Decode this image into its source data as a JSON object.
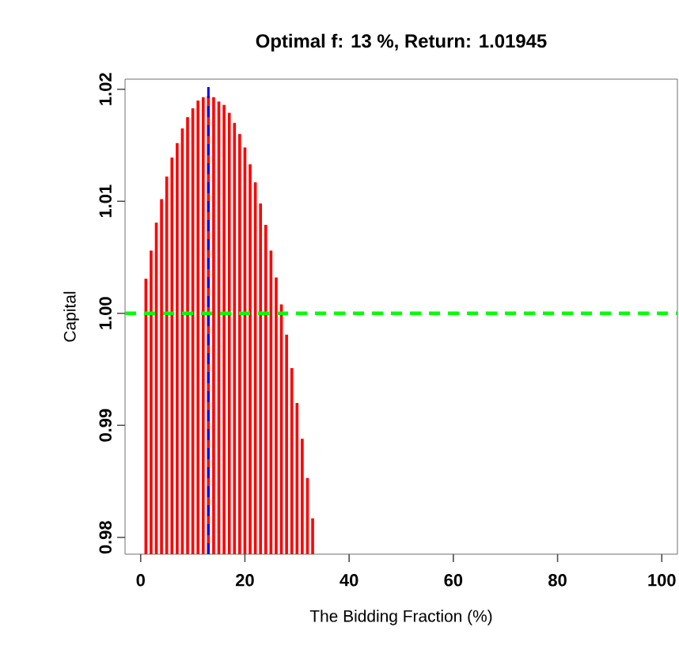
{
  "chart_data": {
    "type": "bar",
    "title": "Optimal f: 13 %, Return: 1.01945",
    "xlabel": "The Bidding Fraction (%)",
    "ylabel": "Capital",
    "x": [
      1,
      2,
      3,
      4,
      5,
      6,
      7,
      8,
      9,
      10,
      11,
      12,
      13,
      14,
      15,
      16,
      17,
      18,
      19,
      20,
      21,
      22,
      23,
      24,
      25,
      26,
      27,
      28,
      29,
      30,
      31,
      32,
      33
    ],
    "series": [
      {
        "color": "#ff0000",
        "values": [
          1.0031,
          1.0056,
          1.0081,
          1.0102,
          1.0122,
          1.0139,
          1.0152,
          1.0165,
          1.0175,
          1.0183,
          1.019,
          1.0193,
          1.0194,
          1.0193,
          1.0189,
          1.0186,
          1.0179,
          1.017,
          1.016,
          1.0148,
          1.0133,
          1.0117,
          1.0098,
          1.0079,
          1.0056,
          1.0032,
          1.0008,
          0.9981,
          0.9951,
          0.992,
          0.9888,
          0.9853,
          0.9817
        ]
      }
    ],
    "xlim": [
      -3,
      103
    ],
    "ylim": [
      0.9785,
      1.0209
    ],
    "xticks": [
      0,
      20,
      40,
      60,
      80,
      100
    ],
    "yticks": [
      {
        "value": 0.98,
        "label": "0.98"
      },
      {
        "value": 0.99,
        "label": "0.99"
      },
      {
        "value": 1.0,
        "label": "1.00"
      },
      {
        "value": 1.01,
        "label": "1.01"
      },
      {
        "value": 1.02,
        "label": "1.02"
      }
    ],
    "ref_lines": [
      {
        "axis": "x",
        "value": 13,
        "color": "#0000ff",
        "line_style": "dashed"
      },
      {
        "axis": "y",
        "value": 1.0,
        "color": "#00ff00",
        "line_style": "dashed"
      }
    ],
    "grid": false
  }
}
